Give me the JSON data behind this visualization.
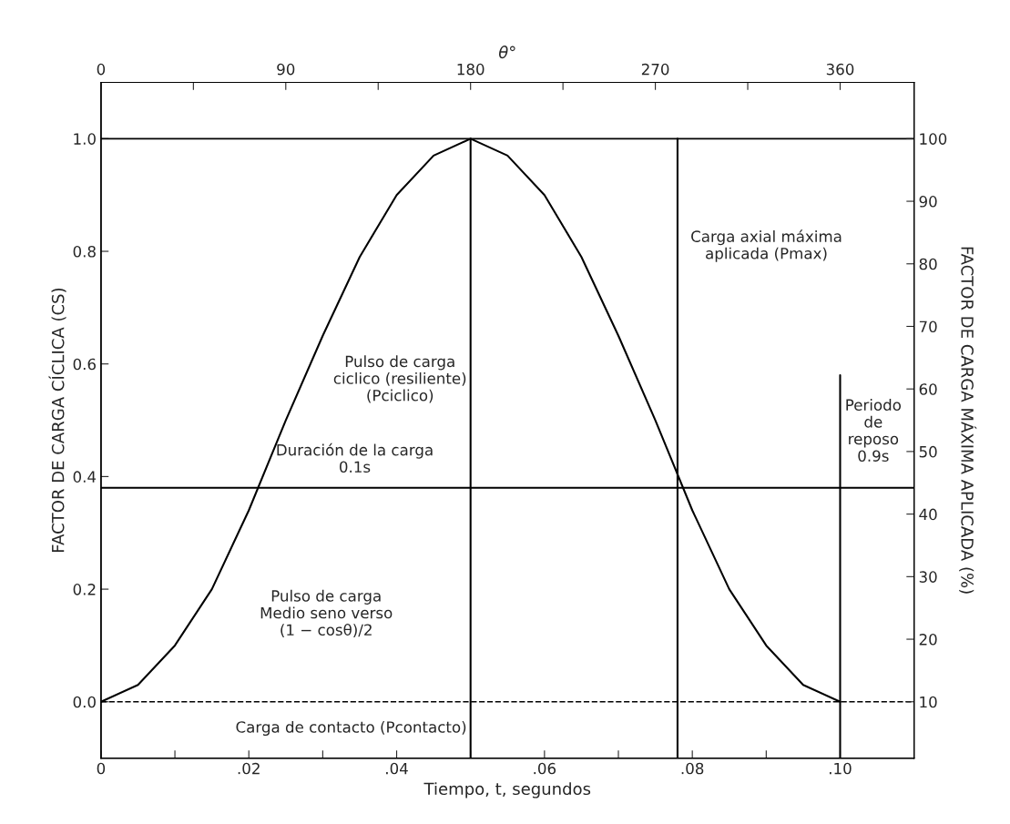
{
  "chart_data": {
    "type": "line",
    "xlabel": "Tiempo, t, segundos",
    "x2label": "θ°",
    "ylabel": "FACTOR DE CARGA CÍCLICA (CS)",
    "y2label": "FACTOR DE CARGA MÁXIMA APLICADA (%)",
    "xlim": [
      0,
      0.11
    ],
    "xticks": [
      0,
      {
        "value": 0.01,
        "label": null
      },
      {
        "value": 0.02,
        "label": ".02"
      },
      {
        "value": 0.03,
        "label": null
      },
      {
        "value": 0.04,
        "label": ".04"
      },
      {
        "value": 0.05,
        "label": null
      },
      {
        "value": 0.06,
        "label": ".06"
      },
      {
        "value": 0.07,
        "label": null
      },
      {
        "value": 0.08,
        "label": ".08"
      },
      {
        "value": 0.09,
        "label": null
      },
      {
        "value": 0.1,
        "label": ".10"
      }
    ],
    "x2lim": [
      0,
      396
    ],
    "x2ticks": [
      0,
      {
        "value": 45,
        "label": null
      },
      90,
      {
        "value": 135,
        "label": null
      },
      180,
      {
        "value": 225,
        "label": null
      },
      270,
      {
        "value": 315,
        "label": null
      },
      360
    ],
    "ylim": [
      -0.1,
      1.1
    ],
    "yticks": [
      {
        "value": 0,
        "label": "0.0"
      },
      {
        "value": 0.2,
        "label": "0.2"
      },
      {
        "value": 0.4,
        "label": "0.4"
      },
      {
        "value": 0.6,
        "label": "0.6"
      },
      {
        "value": 0.8,
        "label": "0.8"
      },
      {
        "value": 1,
        "label": "1.0"
      }
    ],
    "y2lim": [
      1,
      109
    ],
    "y2ticks": [
      10,
      20,
      30,
      40,
      50,
      60,
      70,
      80,
      90,
      100
    ],
    "grid": false,
    "marker": "none",
    "series": [
      {
        "color": "#000000",
        "x": [
          0,
          0.005,
          0.01,
          0.015,
          0.02,
          0.025,
          0.03,
          0.035,
          0.04,
          0.045,
          0.05,
          0.055,
          0.06,
          0.065,
          0.07,
          0.075,
          0.08,
          0.085,
          0.09,
          0.095,
          0.1
        ],
        "values": [
          0,
          0.03,
          0.1,
          0.2,
          0.34,
          0.5,
          0.65,
          0.79,
          0.9,
          0.97,
          1,
          0.97,
          0.9,
          0.79,
          0.65,
          0.5,
          0.34,
          0.2,
          0.1,
          0.03,
          0
        ]
      },
      {
        "color": "#000000",
        "x": [
          0,
          0.11
        ],
        "values": [
          0.38,
          0.38
        ]
      },
      {
        "color": "#000000",
        "x": [
          0.05,
          0.05
        ],
        "values": [
          -0.1,
          1
        ]
      },
      {
        "color": "#000000",
        "x": [
          0.078,
          0.078
        ],
        "values": [
          -0.1,
          1
        ]
      },
      {
        "color": "#000000",
        "x": [
          0.1,
          0.1
        ],
        "values": [
          -0.1,
          0.58
        ]
      }
    ],
    "ref_lines": [
      {
        "axis": "y",
        "value": 1,
        "color": "#000000",
        "line_style": "solid"
      },
      {
        "axis": "y",
        "value": 0,
        "color": "#000000",
        "line_style": "dashed"
      }
    ],
    "annotations": [
      "Duración de la carga\n0.1s",
      "Periodo\nde\nreposo\n0.9s",
      "Pulso de carga\nciclico (resiliente)\n(Pciclico)",
      "Carga axial máxima\naplicada (Pmax)",
      "Pulso de carga\nMedio seno verso\n(1 − cosθ)/2",
      "Carga de contacto (Pcontacto)"
    ]
  }
}
